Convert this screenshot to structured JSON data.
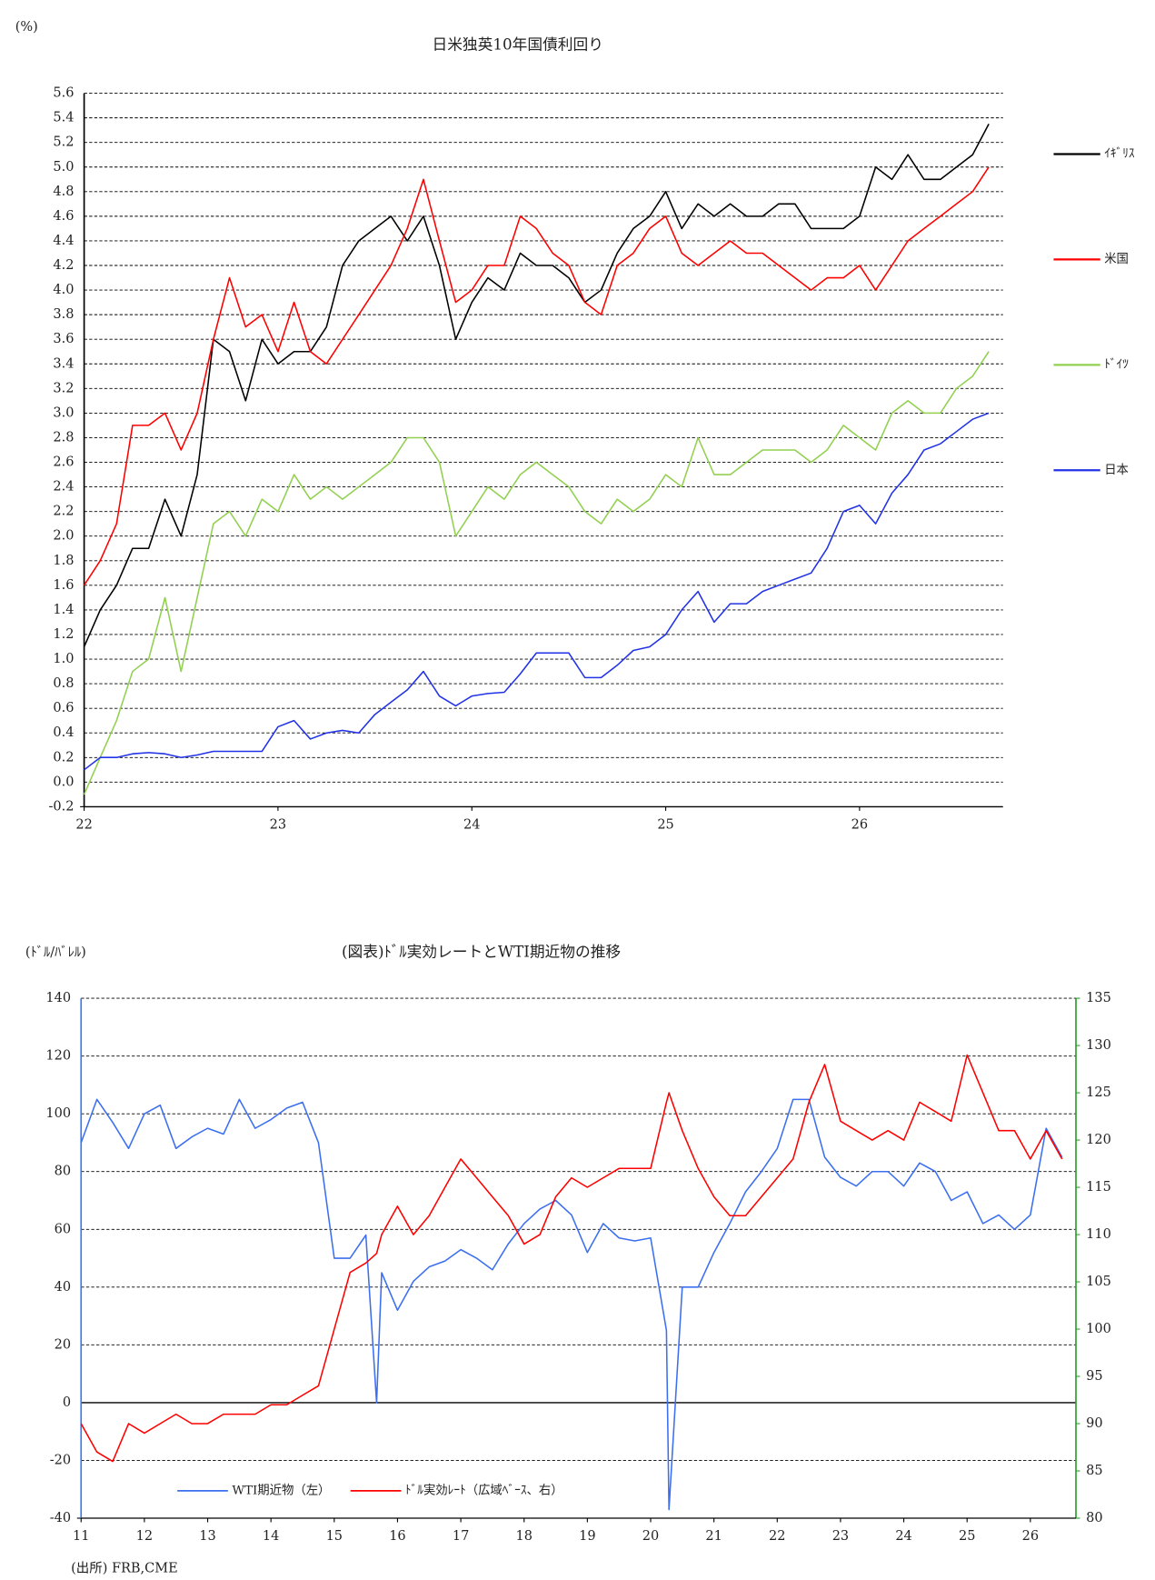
{
  "chart_data": [
    {
      "type": "line",
      "title": "日米独英10年国債利回り",
      "y_label": "(%)",
      "x": [
        22,
        22.083,
        22.167,
        22.25,
        22.333,
        22.417,
        22.5,
        22.583,
        22.667,
        22.75,
        22.833,
        22.917,
        23,
        23.083,
        23.167,
        23.25,
        23.333,
        23.417,
        23.5,
        23.583,
        23.667,
        23.75,
        23.833,
        23.917,
        24,
        24.083,
        24.167,
        24.25,
        24.333,
        24.417,
        24.5,
        24.583,
        24.667,
        24.75,
        24.833,
        24.917,
        25,
        25.083,
        25.167,
        25.25,
        25.333,
        25.417,
        25.5,
        25.583,
        25.667,
        25.75,
        25.833,
        25.917,
        26,
        26.083,
        26.167,
        26.25,
        26.333,
        26.417,
        26.5,
        26.583,
        26.667
      ],
      "xlim": [
        22,
        26.74
      ],
      "xticks": [
        22,
        23,
        24,
        25,
        26
      ],
      "ylim": [
        -0.2,
        5.6
      ],
      "yticks": [
        -0.2,
        {
          "value": 0,
          "label": "0.0"
        },
        0.2,
        0.4,
        0.6,
        0.8,
        {
          "value": 1,
          "label": "1.0"
        },
        1.2,
        1.4,
        1.6,
        1.8,
        {
          "value": 2,
          "label": "2.0"
        },
        2.2,
        2.4,
        2.6,
        2.8,
        {
          "value": 3,
          "label": "3.0"
        },
        3.2,
        3.4,
        3.6,
        3.8,
        {
          "value": 4,
          "label": "4.0"
        },
        4.2,
        4.4,
        4.6,
        4.8,
        {
          "value": 5,
          "label": "5.0"
        },
        5.2,
        5.4,
        5.6
      ],
      "grid": true,
      "legend": "right",
      "series": [
        {
          "name": "ｲｷﾞﾘｽ",
          "color": "#000000",
          "values": [
            1.1,
            1.4,
            1.6,
            1.9,
            1.9,
            2.3,
            2.0,
            2.5,
            3.6,
            3.5,
            3.1,
            3.6,
            3.4,
            3.5,
            3.5,
            3.7,
            4.2,
            4.4,
            4.5,
            4.6,
            4.4,
            4.6,
            4.2,
            3.6,
            3.9,
            4.1,
            4.0,
            4.3,
            4.2,
            4.2,
            4.1,
            3.9,
            4.0,
            4.3,
            4.5,
            4.6,
            4.8,
            4.5,
            4.7,
            4.6,
            4.7,
            4.6,
            4.6,
            4.7,
            4.7,
            4.5,
            4.5,
            4.5,
            4.6,
            5.0,
            4.9,
            5.1,
            4.9,
            4.9,
            5.0,
            5.1,
            5.35
          ]
        },
        {
          "name": "米国",
          "color": "#ff0000",
          "values": [
            1.6,
            1.8,
            2.1,
            2.9,
            2.9,
            3.0,
            2.7,
            3.0,
            3.6,
            4.1,
            3.7,
            3.8,
            3.5,
            3.9,
            3.5,
            3.4,
            3.6,
            3.8,
            4.0,
            4.2,
            4.5,
            4.9,
            4.4,
            3.9,
            4.0,
            4.2,
            4.2,
            4.6,
            4.5,
            4.3,
            4.2,
            3.9,
            3.8,
            4.2,
            4.3,
            4.5,
            4.6,
            4.3,
            4.2,
            4.3,
            4.4,
            4.3,
            4.3,
            4.2,
            4.1,
            4.0,
            4.1,
            4.1,
            4.2,
            4.0,
            4.2,
            4.4,
            4.5,
            4.6,
            4.7,
            4.8,
            5.0
          ]
        },
        {
          "name": "ﾄﾞｲﾂ",
          "color": "#92d050",
          "values": [
            -0.1,
            0.2,
            0.5,
            0.9,
            1.0,
            1.5,
            0.9,
            1.5,
            2.1,
            2.2,
            2.0,
            2.3,
            2.2,
            2.5,
            2.3,
            2.4,
            2.3,
            2.4,
            2.5,
            2.6,
            2.8,
            2.8,
            2.6,
            2.0,
            2.2,
            2.4,
            2.3,
            2.5,
            2.6,
            2.5,
            2.4,
            2.2,
            2.1,
            2.3,
            2.2,
            2.3,
            2.5,
            2.4,
            2.8,
            2.5,
            2.5,
            2.6,
            2.7,
            2.7,
            2.7,
            2.6,
            2.7,
            2.9,
            2.8,
            2.7,
            3.0,
            3.1,
            3.0,
            3.0,
            3.2,
            3.3,
            3.5
          ]
        },
        {
          "name": "日本",
          "color": "#2233e6",
          "values": [
            0.1,
            0.2,
            0.2,
            0.23,
            0.24,
            0.23,
            0.2,
            0.22,
            0.25,
            0.25,
            0.25,
            0.25,
            0.45,
            0.5,
            0.35,
            0.4,
            0.42,
            0.4,
            0.55,
            0.65,
            0.75,
            0.9,
            0.7,
            0.62,
            0.7,
            0.72,
            0.73,
            0.88,
            1.05,
            1.05,
            1.05,
            0.85,
            0.85,
            0.95,
            1.07,
            1.1,
            1.2,
            1.4,
            1.55,
            1.3,
            1.45,
            1.45,
            1.55,
            1.6,
            1.65,
            1.7,
            1.9,
            2.2,
            2.25,
            2.1,
            2.35,
            2.5,
            2.7,
            2.75,
            2.85,
            2.95,
            3.0
          ]
        }
      ]
    },
    {
      "type": "line",
      "title": "(図表)ﾄﾞﾙ実効レートとWTI期近物の推移",
      "y_label": "(ﾄﾞﾙ/ﾊﾞﾚﾙ)",
      "x": [
        11,
        11.25,
        11.5,
        11.75,
        12,
        12.25,
        12.5,
        12.75,
        13,
        13.25,
        13.5,
        13.75,
        14,
        14.25,
        14.5,
        14.75,
        15,
        15.25,
        15.5,
        15.67,
        15.75,
        16,
        16.25,
        16.5,
        16.75,
        17,
        17.25,
        17.5,
        17.75,
        18,
        18.25,
        18.5,
        18.75,
        19,
        19.25,
        19.5,
        19.75,
        20,
        20.25,
        20.29,
        20.5,
        20.75,
        21,
        21.25,
        21.5,
        21.75,
        22,
        22.25,
        22.5,
        22.75,
        23,
        23.25,
        23.5,
        23.75,
        24,
        24.25,
        24.5,
        24.75,
        25,
        25.25,
        25.5,
        25.75,
        26,
        26.25,
        26.5
      ],
      "xlim": [
        11,
        26.72
      ],
      "xticks": [
        11,
        12,
        13,
        14,
        15,
        16,
        17,
        18,
        19,
        20,
        21,
        22,
        23,
        24,
        25,
        26
      ],
      "ylim": [
        -40,
        140
      ],
      "yticks": [
        -40,
        -20,
        0,
        20,
        40,
        60,
        80,
        100,
        120,
        140
      ],
      "y2lim": [
        80,
        135
      ],
      "y2ticks": [
        80,
        85,
        90,
        95,
        100,
        105,
        110,
        115,
        120,
        125,
        130,
        135
      ],
      "y_axis_color": "#3c78f0",
      "y2_axis_color": "#2ca02c",
      "grid": true,
      "zero_line": true,
      "legend": "bottom-left",
      "series": [
        {
          "name": "WTI期近物（左）",
          "color": "#3c6ff0",
          "values": [
            90,
            105,
            97,
            88,
            100,
            103,
            88,
            92,
            95,
            93,
            105,
            95,
            98,
            102,
            104,
            90,
            50,
            50,
            58,
            0,
            45,
            32,
            42,
            47,
            49,
            53,
            50,
            46,
            55,
            62,
            67,
            70,
            65,
            52,
            62,
            57,
            56,
            57,
            25,
            -37,
            40,
            40,
            52,
            62,
            73,
            80,
            88,
            105,
            105,
            85,
            78,
            75,
            80,
            80,
            75,
            83,
            80,
            70,
            73,
            62,
            65,
            60,
            65,
            95,
            85
          ]
        },
        {
          "name": "ﾄﾞﾙ実効ﾚｰﾄ（広域ﾍﾞｰｽ、右）",
          "color": "#ff0000",
          "axis": "y2",
          "values": [
            90,
            87,
            86,
            90,
            89,
            90,
            91,
            90,
            90,
            91,
            91,
            91,
            92,
            92,
            93,
            94,
            100,
            106,
            107,
            108,
            110,
            113,
            110,
            112,
            115,
            118,
            116,
            114,
            112,
            109,
            110,
            114,
            116,
            115,
            116,
            117,
            117,
            117,
            124,
            125,
            121,
            117,
            114,
            112,
            112,
            114,
            116,
            118,
            124,
            128,
            122,
            121,
            120,
            121,
            120,
            124,
            123,
            122,
            129,
            125,
            121,
            121,
            118,
            121,
            118
          ]
        }
      ]
    }
  ],
  "source": "(出所) FRB,CME"
}
